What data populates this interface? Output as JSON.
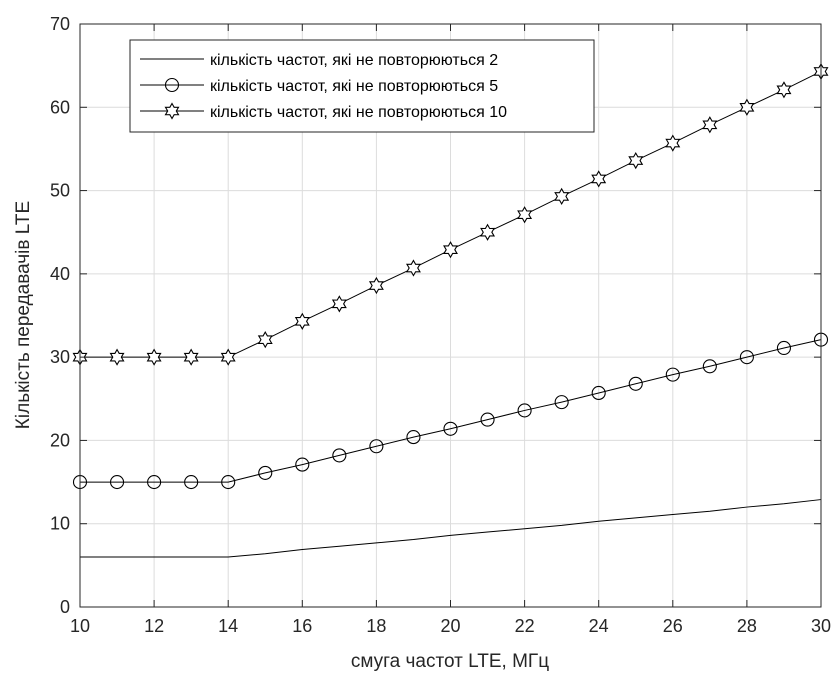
{
  "chart_data": {
    "type": "line",
    "title": "",
    "xlabel": "смуга частот LTE, МГц",
    "ylabel": "Кількість передавачів LTE",
    "xlim": [
      10,
      30
    ],
    "ylim": [
      0,
      70
    ],
    "xticks": [
      10,
      12,
      14,
      16,
      18,
      20,
      22,
      24,
      26,
      28,
      30
    ],
    "yticks": [
      0,
      10,
      20,
      30,
      40,
      50,
      60,
      70
    ],
    "grid": true,
    "legend_position": "top-center",
    "x": [
      10,
      11,
      12,
      13,
      14,
      15,
      16,
      17,
      18,
      19,
      20,
      21,
      22,
      23,
      24,
      25,
      26,
      27,
      28,
      29,
      30
    ],
    "series": [
      {
        "name": "кількість частот, які не повторюються 2",
        "marker": "none",
        "color": "#000000",
        "values": [
          6,
          6,
          6,
          6,
          6,
          6.4,
          6.9,
          7.3,
          7.7,
          8.1,
          8.6,
          9.0,
          9.4,
          9.8,
          10.3,
          10.7,
          11.1,
          11.5,
          12.0,
          12.4,
          12.9
        ]
      },
      {
        "name": "кількість частот, які не повторюються 5",
        "marker": "circle",
        "color": "#000000",
        "values": [
          15,
          15,
          15,
          15,
          15,
          16.1,
          17.1,
          18.2,
          19.3,
          20.4,
          21.4,
          22.5,
          23.6,
          24.6,
          25.7,
          26.8,
          27.9,
          28.9,
          30.0,
          31.1,
          32.1
        ]
      },
      {
        "name": "кількість частот, які не повторюються 10",
        "marker": "hexagram",
        "color": "#000000",
        "values": [
          30,
          30,
          30,
          30,
          30,
          32.1,
          34.3,
          36.4,
          38.6,
          40.7,
          42.9,
          45.0,
          47.1,
          49.3,
          51.4,
          53.6,
          55.7,
          57.9,
          60.0,
          62.1,
          64.3
        ]
      }
    ]
  }
}
